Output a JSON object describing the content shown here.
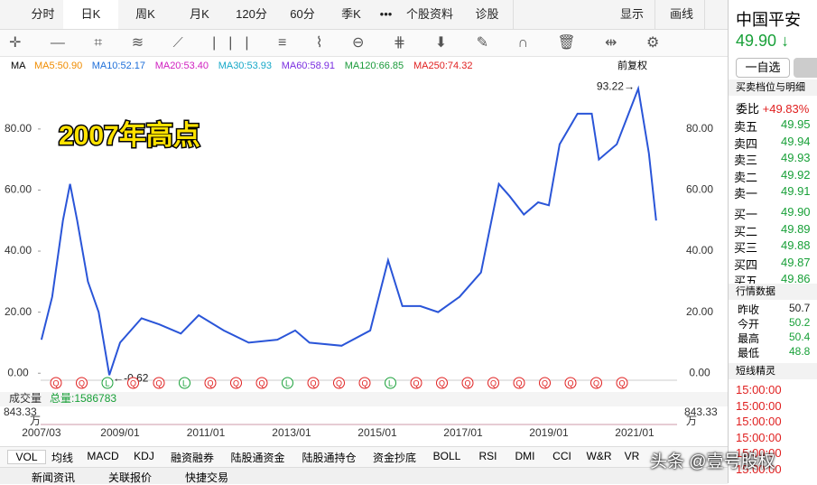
{
  "toolbar": {
    "tabs": [
      "分时",
      "日K",
      "周K",
      "月K",
      "120分",
      "60分",
      "季K",
      "•••",
      "个股资料",
      "诊股"
    ],
    "active": 1,
    "right": [
      "显示",
      "画线"
    ]
  },
  "ma_bar": {
    "label": "MA",
    "items": [
      {
        "text": "MA5:50.90",
        "color": "#f08c00"
      },
      {
        "text": "MA10:52.17",
        "color": "#1e6fd9"
      },
      {
        "text": "MA20:53.40",
        "color": "#d020c0"
      },
      {
        "text": "MA30:53.93",
        "color": "#16a8c8"
      },
      {
        "text": "MA60:58.91",
        "color": "#7a2ee0"
      },
      {
        "text": "MA120:66.85",
        "color": "#1a9a3a"
      },
      {
        "text": "MA250:74.32",
        "color": "#e02020"
      }
    ],
    "right": "前复权"
  },
  "chart_data": {
    "type": "line",
    "color": "#2a55d8",
    "x": [
      "2007/03",
      "2007/06",
      "2007/09",
      "2007/11",
      "2008/01",
      "2008/04",
      "2008/07",
      "2008/10",
      "2009/01",
      "2009/07",
      "2009/12",
      "2010/06",
      "2010/11",
      "2011/06",
      "2012/01",
      "2012/09",
      "2013/02",
      "2013/06",
      "2014/03",
      "2014/11",
      "2015/04",
      "2015/08",
      "2016/01",
      "2016/06",
      "2016/12",
      "2017/06",
      "2017/11",
      "2018/02",
      "2018/06",
      "2018/10",
      "2019/01",
      "2019/04",
      "2019/09",
      "2020/01",
      "2020/03",
      "2020/08",
      "2021/02",
      "2021/05",
      "2021/07"
    ],
    "values": [
      11,
      25,
      50,
      62,
      50,
      30,
      20,
      -0.62,
      10,
      18,
      16,
      13,
      19,
      14,
      10,
      11,
      14,
      10,
      9,
      14,
      37,
      22,
      22,
      20,
      25,
      33,
      62,
      58,
      52,
      56,
      55,
      75,
      85,
      85,
      70,
      75,
      93.22,
      72,
      50
    ],
    "ylim": [
      -2,
      98
    ],
    "yticks": [
      {
        "value": 0,
        "label": "0.00"
      },
      {
        "value": 20,
        "label": "20.00"
      },
      {
        "value": 40,
        "label": "40.00"
      },
      {
        "value": 60,
        "label": "60.00"
      },
      {
        "value": 80,
        "label": "80.00"
      }
    ],
    "xticks": [
      "2007/03",
      "2009/01",
      "2011/01",
      "2013/01",
      "2015/01",
      "2017/01",
      "2019/01",
      "2021/01"
    ],
    "annotations": {
      "headline": "2007年高点",
      "high": "93.22→",
      "low": "←-0.62"
    }
  },
  "markers": [
    "Q",
    "Q",
    "L",
    "Q",
    "Q",
    "L",
    "Q",
    "Q",
    "Q",
    "L",
    "Q",
    "Q",
    "Q",
    "L",
    "Q",
    "Q",
    "Q",
    "Q",
    "Q",
    "Q",
    "Q",
    "Q",
    "Q"
  ],
  "volume": {
    "label": "成交量",
    "total": "总量:1586783",
    "max": "843.33",
    "unit": "万"
  },
  "indicator_tabs": [
    "VOL",
    "均线",
    "MACD",
    "KDJ",
    "融资融券",
    "陆股通资金",
    "陆股通持仓",
    "资金抄底",
    "BOLL",
    "RSI",
    "DMI",
    "CCI",
    "W&R",
    "VR"
  ],
  "bottom_tabs": [
    "新闻资讯",
    "关联报价",
    "快捷交易"
  ],
  "quote": {
    "name": "中国平安",
    "price": "49.90",
    "arrow": "↓",
    "watch": "一自选",
    "section1": "买卖档位与明细",
    "ratio_label": "委比",
    "ratio": "+49.83%",
    "sell": [
      [
        "卖五",
        "49.95"
      ],
      [
        "卖四",
        "49.94"
      ],
      [
        "卖三",
        "49.93"
      ],
      [
        "卖二",
        "49.92"
      ],
      [
        "卖一",
        "49.91"
      ]
    ],
    "buy": [
      [
        "买一",
        "49.90"
      ],
      [
        "买二",
        "49.89"
      ],
      [
        "买三",
        "49.88"
      ],
      [
        "买四",
        "49.87"
      ],
      [
        "买五",
        "49.86"
      ]
    ],
    "section2": "行情数据",
    "stats": [
      [
        "昨收",
        "50.7"
      ],
      [
        "今开",
        "50.2"
      ],
      [
        "最高",
        "50.4"
      ],
      [
        "最低",
        "48.8"
      ]
    ],
    "section3": "短线精灵",
    "times": [
      "15:00:00",
      "15:00:00",
      "15:00:00",
      "15:00:00",
      "15:00:00",
      "15:00:00"
    ]
  },
  "watermark": "头条 @壹号股权"
}
